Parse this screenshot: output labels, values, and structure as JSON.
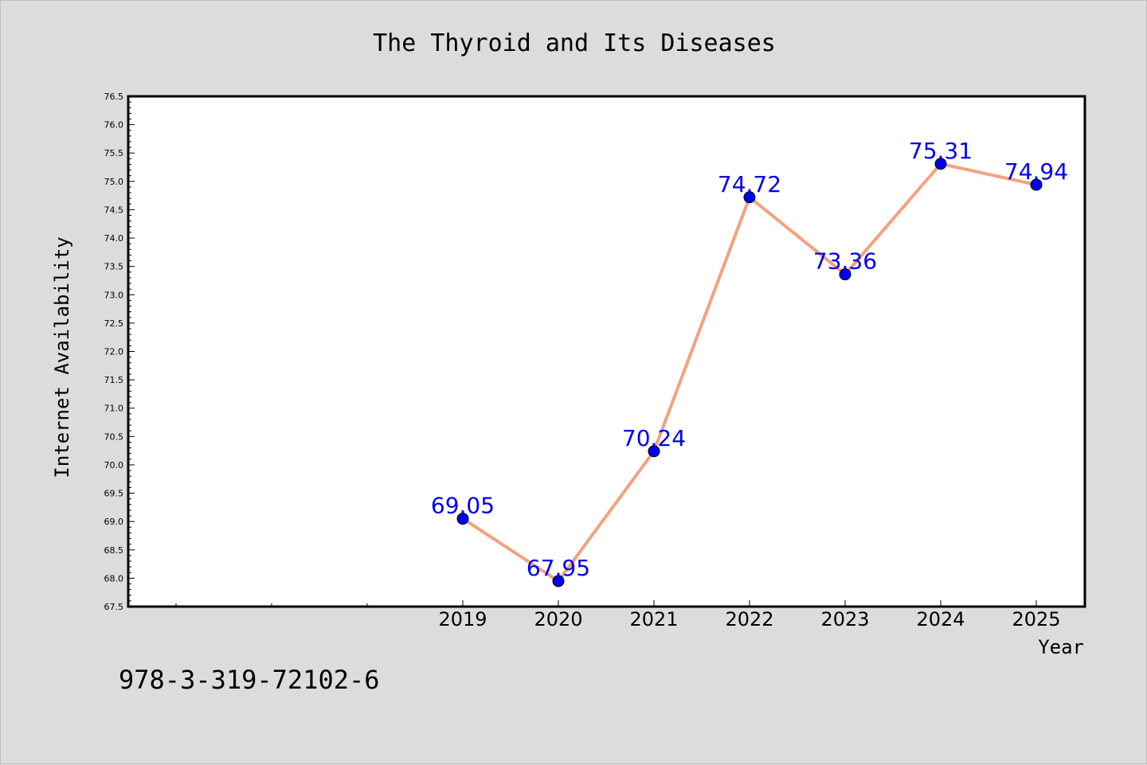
{
  "chart_data": {
    "type": "line",
    "title": "The Thyroid and Its Diseases",
    "xlabel": "Year",
    "ylabel": "Internet Availability",
    "x": [
      "2019",
      "2020",
      "2021",
      "2022",
      "2023",
      "2024",
      "2025"
    ],
    "series": [
      {
        "values": [
          69.05,
          67.95,
          70.24,
          74.72,
          73.36,
          75.31,
          74.94
        ]
      }
    ],
    "data_labels": [
      "69.05",
      "67.95",
      "70.24",
      "74.72",
      "73.36",
      "75.31",
      "74.94"
    ],
    "ylim": [
      67.5,
      76.5
    ],
    "y_ticks": [
      "67.5",
      "68.0",
      "68.5",
      "69.0",
      "69.5",
      "70.0",
      "70.5",
      "71.0",
      "71.5",
      "72.0",
      "72.5",
      "73.0",
      "73.5",
      "74.0",
      "74.5",
      "75.0",
      "75.5",
      "76.0",
      "76.5"
    ],
    "x_ticks": [
      "2019",
      "2020",
      "2021",
      "2022",
      "2023",
      "2024",
      "2025"
    ],
    "grid": false,
    "line_color": "#f4a27e",
    "marker_color": "#0000ee",
    "label_color": "#0000ee"
  },
  "footer_text": "978-3-319-72102-6"
}
